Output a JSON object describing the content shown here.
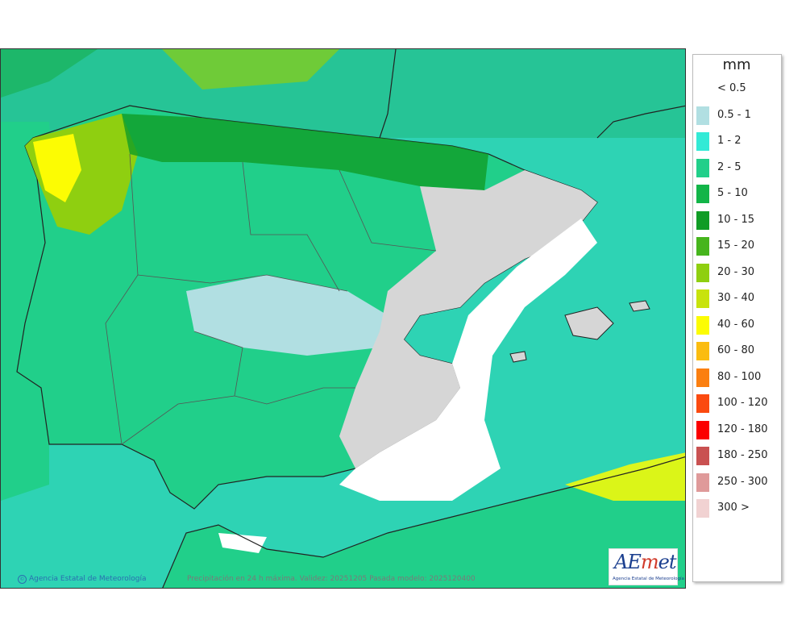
{
  "legend": {
    "unit": "mm",
    "items": [
      {
        "label": "< 0.5",
        "color": null
      },
      {
        "label": "0.5 - 1",
        "color": "#b1dfe2"
      },
      {
        "label": "1 - 2",
        "color": "#33ead6"
      },
      {
        "label": "2 - 5",
        "color": "#21cf8a"
      },
      {
        "label": "5 - 10",
        "color": "#12b548"
      },
      {
        "label": "10 - 15",
        "color": "#109c25"
      },
      {
        "label": "15 - 20",
        "color": "#46b51d"
      },
      {
        "label": "20 - 30",
        "color": "#8fcf10"
      },
      {
        "label": "30 - 40",
        "color": "#c8e30c"
      },
      {
        "label": "40 - 60",
        "color": "#fcfc03"
      },
      {
        "label": "60 - 80",
        "color": "#fbbc10"
      },
      {
        "label": "80 - 100",
        "color": "#fb7f10"
      },
      {
        "label": "100 - 120",
        "color": "#fb4a10"
      },
      {
        "label": "120 - 180",
        "color": "#fb0000"
      },
      {
        "label": "180 - 250",
        "color": "#c95151"
      },
      {
        "label": "250 - 300",
        "color": "#df9a9a"
      },
      {
        "label": "300 >",
        "color": "#f1d2d2"
      }
    ]
  },
  "map": {
    "copyright": "Agencia Estatal de Meteorología",
    "caption": "Precipitación en 24 h máxima. Validez: 20251205 Pasada modelo: 2025120400"
  },
  "logo": {
    "text_prefix": "AE",
    "text_m": "m",
    "text_suffix": "et",
    "subtitle": "Agencia Estatal de Meteorología"
  }
}
